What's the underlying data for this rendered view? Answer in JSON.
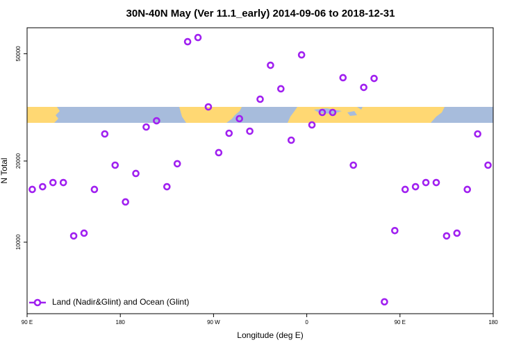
{
  "chart_data": {
    "type": "scatter",
    "title": "30N-40N May (Ver 11.1_early)   2014-09-06 to 2018-12-31",
    "xlabel": "Longitude (deg E)",
    "ylabel": "N Total",
    "x": [
      95,
      105,
      115,
      125,
      135,
      145,
      155,
      165,
      175,
      185,
      195,
      205,
      215,
      225,
      235,
      245,
      255,
      265,
      275,
      285,
      295,
      305,
      315,
      325,
      335,
      345,
      355,
      365,
      375,
      385,
      395,
      405,
      415,
      425,
      435,
      445,
      455,
      465,
      475,
      485,
      495,
      505,
      515,
      525,
      535
    ],
    "series": [
      {
        "name": "Land (Nadir&Glint) and Ocean (Glint)",
        "color": "#a020f0",
        "values": [
          15690,
          16060,
          16640,
          16640,
          10550,
          10800,
          15690,
          25200,
          19300,
          14100,
          17980,
          26740,
          28200,
          16060,
          19540,
          55400,
          57400,
          31750,
          21480,
          25350,
          28710,
          25800,
          33900,
          45300,
          37050,
          23890,
          49500,
          27220,
          30280,
          30280,
          40740,
          19300,
          37500,
          40480,
          6010,
          11040,
          15690,
          16060,
          16640,
          16640,
          10550,
          10800,
          15690,
          25200,
          19300
        ]
      }
    ],
    "xlim": [
      90,
      540
    ],
    "xticks": [
      {
        "value": 90,
        "label": "90 E"
      },
      180,
      {
        "value": 270,
        "label": "90 W"
      },
      {
        "value": 360,
        "label": "0"
      },
      {
        "value": 450,
        "label": "90 E"
      },
      {
        "value": 540,
        "label": "180"
      }
    ],
    "ylim": [
      5430,
      62400
    ],
    "yticks": [
      10000,
      20000,
      50000
    ],
    "log_y": true,
    "legend": "bottom-left"
  }
}
